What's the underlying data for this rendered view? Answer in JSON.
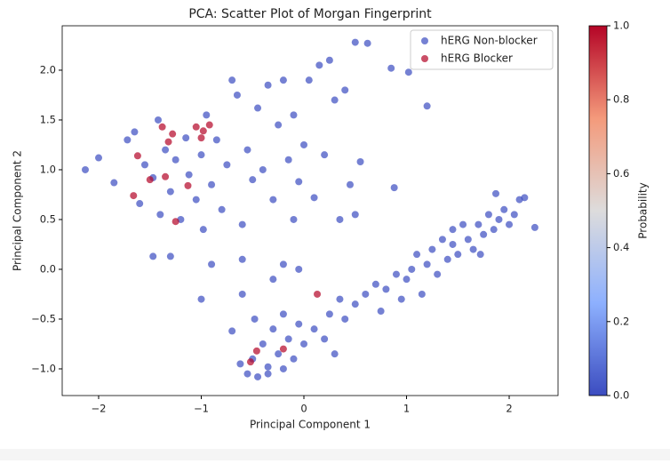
{
  "chart_data": {
    "type": "scatter",
    "title": "PCA: Scatter Plot of Morgan Fingerprint",
    "x_label": "Principal Component 1",
    "y_label": "Principal Component 2",
    "xlim": [
      -2.355,
      2.476
    ],
    "ylim": [
      -1.268,
      2.446
    ],
    "xticks": [
      {
        "value": -2,
        "label": "−2"
      },
      {
        "value": -1,
        "label": "−1"
      },
      0,
      1,
      2
    ],
    "yticks": [
      {
        "value": -1.0,
        "label": "−1.0"
      },
      {
        "value": -0.5,
        "label": "−0.5"
      },
      {
        "value": 0.0,
        "label": "0.0"
      },
      {
        "value": 0.5,
        "label": "0.5"
      },
      {
        "value": 1.0,
        "label": "1.0"
      },
      {
        "value": 1.5,
        "label": "1.5"
      },
      {
        "value": 2.0,
        "label": "2.0"
      }
    ],
    "legend": "upper right",
    "colorbar": {
      "label": "Probability",
      "lim": [
        0,
        1
      ],
      "ticks": [
        {
          "value": 0.0,
          "label": "0.0"
        },
        {
          "value": 0.2,
          "label": "0.2"
        },
        {
          "value": 0.4,
          "label": "0.4"
        },
        {
          "value": 0.6,
          "label": "0.6"
        },
        {
          "value": 0.8,
          "label": "0.8"
        },
        {
          "value": 1.0,
          "label": "1.0"
        }
      ]
    },
    "series": [
      {
        "name": "hERG Non-blocker",
        "color": "#3b4cc0",
        "x": [
          -2.13,
          -2.0,
          -1.85,
          -1.72,
          -1.65,
          -1.6,
          -1.55,
          -1.47,
          -1.42,
          -1.4,
          -1.35,
          -1.3,
          -1.25,
          -1.2,
          -1.15,
          -1.12,
          -1.05,
          -1.0,
          -0.98,
          -0.95,
          -0.9,
          -0.85,
          -0.8,
          -0.75,
          -0.7,
          -0.65,
          -0.6,
          -0.55,
          -0.5,
          -0.45,
          -0.4,
          -0.35,
          -0.3,
          -0.25,
          -0.2,
          -0.15,
          -0.1,
          -0.05,
          0.0,
          0.05,
          0.1,
          0.15,
          0.2,
          0.25,
          0.3,
          0.35,
          0.4,
          0.45,
          0.5,
          0.55,
          0.62,
          0.85,
          1.02,
          1.2,
          0.88,
          -1.47,
          -1.3,
          -1.0,
          -0.9,
          -0.6,
          -0.6,
          -0.3,
          -0.2,
          -0.05,
          0.5,
          -0.1,
          -0.62,
          -0.55,
          -0.5,
          -0.45,
          -0.4,
          -0.35,
          -0.3,
          -0.25,
          -0.2,
          -0.15,
          -0.1,
          -0.05,
          0.0,
          -0.7,
          -0.48,
          0.1,
          0.2,
          0.25,
          0.3,
          0.35,
          -0.35,
          -0.2,
          0.4,
          0.5,
          0.6,
          0.7,
          0.8,
          0.9,
          1.0,
          1.05,
          1.1,
          1.2,
          1.25,
          1.3,
          1.35,
          1.4,
          1.45,
          1.5,
          1.55,
          1.6,
          1.65,
          1.7,
          1.75,
          1.8,
          1.85,
          1.9,
          1.95,
          2.0,
          2.05,
          2.1,
          2.15,
          2.25,
          1.87,
          1.45,
          1.72,
          0.75,
          1.15,
          0.95
        ],
        "values": [
          1.0,
          1.12,
          0.87,
          1.3,
          1.38,
          0.66,
          1.05,
          0.92,
          1.5,
          0.55,
          1.2,
          0.78,
          1.1,
          0.5,
          1.32,
          0.95,
          0.7,
          1.15,
          0.4,
          1.55,
          0.85,
          1.3,
          0.6,
          1.05,
          1.9,
          1.75,
          0.45,
          1.2,
          0.9,
          1.62,
          1.0,
          1.85,
          0.7,
          1.45,
          1.9,
          1.1,
          1.55,
          0.88,
          1.25,
          1.9,
          0.72,
          2.05,
          1.15,
          2.1,
          1.7,
          0.5,
          1.8,
          0.85,
          2.28,
          1.08,
          2.27,
          2.02,
          1.98,
          1.64,
          0.82,
          0.13,
          0.13,
          -0.3,
          0.05,
          -0.25,
          0.1,
          -0.1,
          0.05,
          0.0,
          0.55,
          0.5,
          -0.95,
          -1.05,
          -0.9,
          -1.08,
          -0.75,
          -0.98,
          -0.6,
          -0.85,
          -1.0,
          -0.7,
          -0.9,
          -0.55,
          -0.75,
          -0.62,
          -0.5,
          -0.6,
          -0.7,
          -0.45,
          -0.85,
          -0.3,
          -1.05,
          -0.45,
          -0.5,
          -0.35,
          -0.25,
          -0.15,
          -0.2,
          -0.05,
          -0.1,
          0.0,
          0.15,
          0.05,
          0.2,
          -0.05,
          0.3,
          0.1,
          0.25,
          0.15,
          0.45,
          0.3,
          0.2,
          0.45,
          0.35,
          0.55,
          0.4,
          0.5,
          0.6,
          0.45,
          0.55,
          0.7,
          0.72,
          0.42,
          0.76,
          0.4,
          0.15,
          -0.42,
          -0.25,
          -0.3
        ]
      },
      {
        "name": "hERG Blocker",
        "color": "#b40426",
        "x": [
          -1.66,
          -1.62,
          -1.5,
          -1.38,
          -1.35,
          -1.28,
          -1.32,
          -1.05,
          -1.0,
          -0.98,
          -0.92,
          -1.13,
          -1.25,
          0.13,
          -0.2,
          -0.46,
          -0.52
        ],
        "values": [
          0.74,
          1.14,
          0.9,
          1.43,
          0.93,
          1.36,
          1.28,
          1.43,
          1.32,
          1.39,
          1.45,
          0.84,
          0.48,
          -0.25,
          -0.8,
          -0.82,
          -0.93
        ]
      }
    ]
  }
}
